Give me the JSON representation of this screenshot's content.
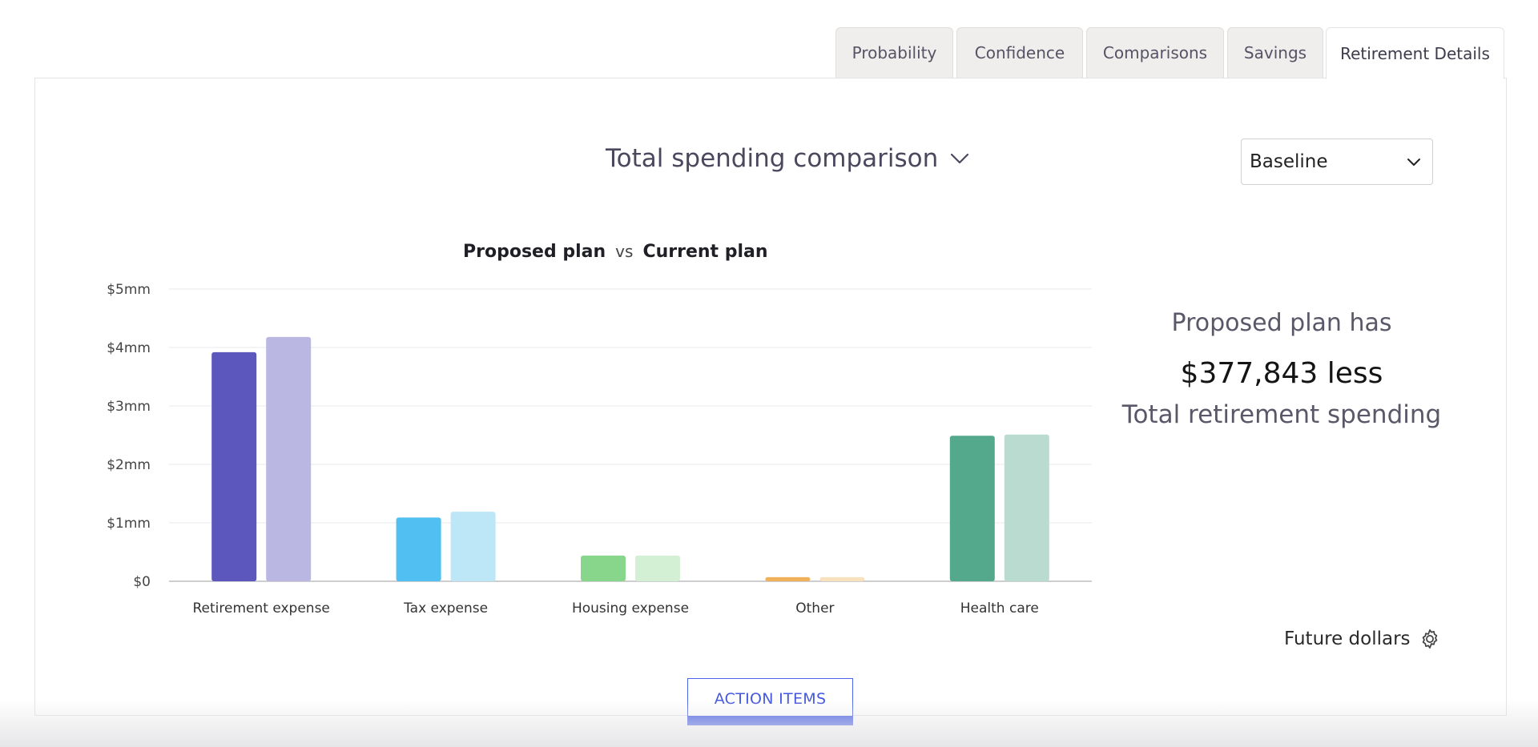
{
  "tabs": [
    {
      "label": "Probability",
      "active": false
    },
    {
      "label": "Confidence",
      "active": false
    },
    {
      "label": "Comparisons",
      "active": false
    },
    {
      "label": "Savings",
      "active": false
    },
    {
      "label": "Retirement Details",
      "active": true
    }
  ],
  "chart_selector": {
    "label": "Total spending comparison"
  },
  "scenario_select": {
    "value": "Baseline"
  },
  "legend": {
    "series_a": "Proposed plan",
    "vs": "vs",
    "series_b": "Current plan"
  },
  "summary": {
    "line1": "Proposed plan has",
    "amount": "$377,843 less",
    "line3": "Total retirement spending"
  },
  "future_dollars_label": "Future dollars",
  "action_items_label": "ACTION ITEMS",
  "colors": {
    "accent": "#4e64e6",
    "retirement": [
      "#5b57bd",
      "#bab8e3"
    ],
    "tax": [
      "#51bff2",
      "#bde6f7"
    ],
    "housing": [
      "#88d68c",
      "#d3efd4"
    ],
    "other": [
      "#f0b15a",
      "#f8e1bd"
    ],
    "health": [
      "#54a88c",
      "#badbcf"
    ]
  },
  "chart_data": {
    "type": "bar",
    "categories": [
      "Retirement expense",
      "Tax expense",
      "Housing expense",
      "Other",
      "Health care"
    ],
    "series": [
      {
        "name": "Proposed plan",
        "values": [
          3.92,
          1.09,
          0.44,
          0.07,
          2.49
        ]
      },
      {
        "name": "Current plan",
        "values": [
          4.18,
          1.19,
          0.44,
          0.07,
          2.51
        ]
      }
    ],
    "yticks": [
      "$0",
      "$1mm",
      "$2mm",
      "$3mm",
      "$4mm",
      "$5mm"
    ],
    "ylim": [
      0,
      5
    ],
    "grid": true,
    "xlabel": "",
    "ylabel": ""
  }
}
